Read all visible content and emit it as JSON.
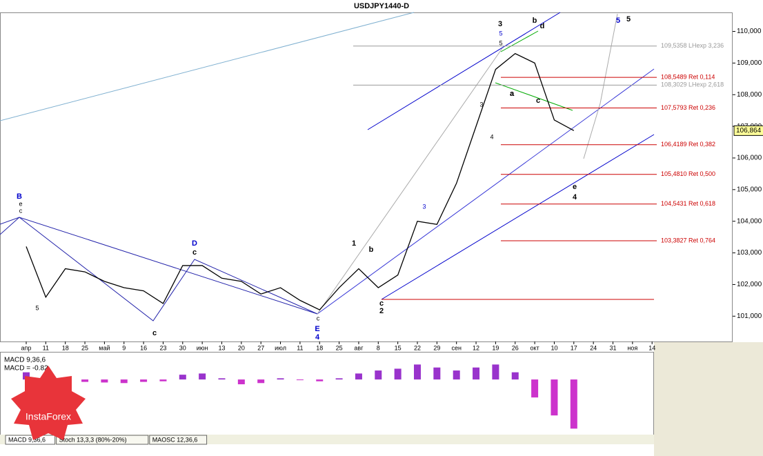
{
  "chart_data": {
    "type": "line",
    "title": "USDJPY1440-D",
    "categories": [
      "апр",
      "11",
      "18",
      "25",
      "май",
      "9",
      "16",
      "23",
      "30",
      "июн",
      "13",
      "20",
      "27",
      "июл",
      "11",
      "18",
      "25",
      "авг",
      "8",
      "15",
      "22",
      "29",
      "сен",
      "12",
      "19",
      "26",
      "окт",
      "10",
      "17",
      "24",
      "31",
      "ноя",
      "14"
    ],
    "series": [
      {
        "name": "USDJPY",
        "color": "#000000",
        "values": [
          103.2,
          101.6,
          102.5,
          102.4,
          102.1,
          101.9,
          101.8,
          101.4,
          102.6,
          102.6,
          102.2,
          102.1,
          101.7,
          101.9,
          101.5,
          101.2,
          101.9,
          102.5,
          101.9,
          102.3,
          104.0,
          103.9,
          105.2,
          107.0,
          108.8,
          109.3,
          109.0,
          107.2,
          106.864,
          null,
          null,
          null,
          null
        ]
      }
    ],
    "ylim": [
      100.2,
      110.6
    ],
    "yticks": [
      {
        "value": 101,
        "label": "101,000"
      },
      {
        "value": 102,
        "label": "102,000"
      },
      {
        "value": 103,
        "label": "103,000"
      },
      {
        "value": 104,
        "label": "104,000"
      },
      {
        "value": 105,
        "label": "105,000"
      },
      {
        "value": 106,
        "label": "106,000"
      },
      {
        "value": 107,
        "label": "107,000"
      },
      {
        "value": 108,
        "label": "108,000"
      },
      {
        "value": 109,
        "label": "109,000"
      },
      {
        "value": 110,
        "label": "110,000"
      }
    ],
    "last_price": {
      "value": 106.864,
      "label": "106,864"
    },
    "levels": [
      {
        "value": 109.5358,
        "label": "109,5358 LHexp 3,236",
        "color": "#999999"
      },
      {
        "value": 108.5489,
        "label": "108,5489 Ret 0,114",
        "color": "#cc0000"
      },
      {
        "value": 108.3029,
        "label": "108,3029 LHexp 2,618",
        "color": "#999999"
      },
      {
        "value": 107.5793,
        "label": "107,5793 Ret 0,236",
        "color": "#cc0000"
      },
      {
        "value": 106.4189,
        "label": "106,4189 Ret 0,382",
        "color": "#cc0000"
      },
      {
        "value": 105.481,
        "label": "105,4810 Ret 0,500",
        "color": "#cc0000"
      },
      {
        "value": 104.5431,
        "label": "104,5431 Ret 0,618",
        "color": "#cc0000"
      },
      {
        "value": 103.3827,
        "label": "103,3827 Ret 0,764",
        "color": "#cc0000"
      }
    ],
    "wave_labels": [
      "B",
      "e",
      "c",
      "5",
      "3",
      "a",
      "D",
      "c",
      "c",
      "c",
      "E",
      "4",
      "1",
      "b",
      "c",
      "2",
      "3",
      "4",
      "3",
      "5",
      "5",
      "a",
      "c",
      "b",
      "d",
      "e",
      "4",
      "5",
      "5"
    ],
    "macd": {
      "labels": [
        "MACD 9,36,6",
        "MACD = -0.82"
      ],
      "ylim": [
        -0.92,
        0.45
      ],
      "color_pos": "#9933cc",
      "color_neg": "#cc33cc",
      "values": [
        0.12,
        0.05,
        -0.02,
        -0.04,
        -0.05,
        -0.06,
        -0.04,
        -0.03,
        0.08,
        0.1,
        0.02,
        -0.08,
        -0.06,
        0.02,
        -0.01,
        -0.03,
        0.02,
        0.1,
        0.15,
        0.18,
        0.25,
        0.2,
        0.15,
        0.2,
        0.25,
        0.12,
        -0.3,
        -0.6,
        -0.82,
        null,
        null,
        null,
        null
      ]
    },
    "tabs": [
      "MACD 9,36,6",
      "Stoch 13,3,3 (80%-20%)",
      "MAOSC 12,36,6"
    ],
    "logo": "InstaForex"
  }
}
